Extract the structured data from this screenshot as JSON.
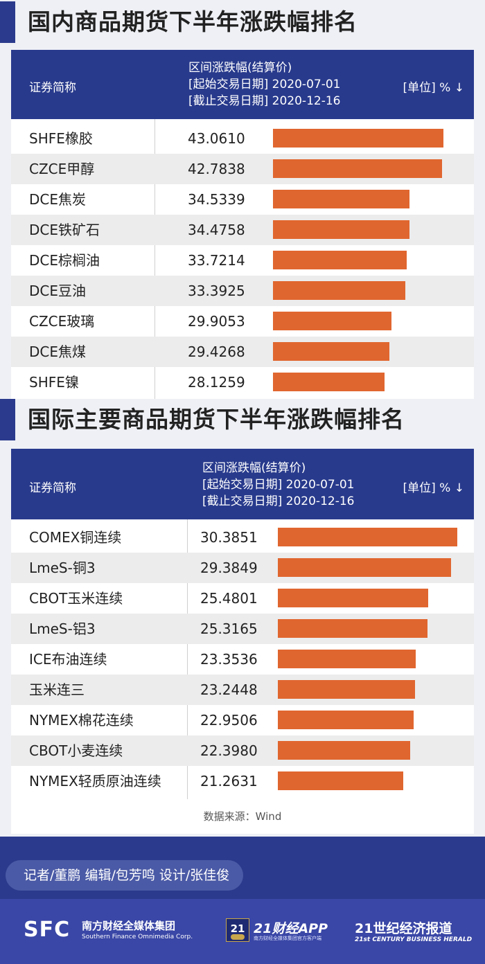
{
  "domestic": {
    "title": "国内商品期货下半年涨跌幅排名",
    "header": {
      "name_col": "证券简称",
      "range_line1": "区间涨跌幅(结算价)",
      "range_line2": "[起始交易日期] 2020-07-01",
      "range_line3": "[截止交易日期] 2020-12-16",
      "unit": "[单位] % ↓"
    }
  },
  "international": {
    "title": "国际主要商品期货下半年涨跌幅排名",
    "header": {
      "name_col": "证券简称",
      "range_line1": "区间涨跌幅(结算价)",
      "range_line2": "[起始交易日期] 2020-07-01",
      "range_line3": "[截止交易日期] 2020-12-16",
      "unit": "[单位] % ↓"
    }
  },
  "chart_data": [
    {
      "type": "bar",
      "title": "国内商品期货下半年涨跌幅排名",
      "ylabel": "区间涨跌幅(结算价) %",
      "categories": [
        "SHFE橡胶",
        "CZCE甲醇",
        "DCE焦炭",
        "DCE铁矿石",
        "DCE棕榈油",
        "DCE豆油",
        "CZCE玻璃",
        "DCE焦煤",
        "SHFE镍"
      ],
      "values": [
        43.061,
        42.7838,
        34.5339,
        34.4758,
        33.7214,
        33.3925,
        29.9053,
        29.4268,
        28.1259
      ],
      "labels": [
        "43.0610",
        "42.7838",
        "34.5339",
        "34.4758",
        "33.7214",
        "33.3925",
        "29.9053",
        "29.4268",
        "28.1259"
      ]
    },
    {
      "type": "bar",
      "title": "国际主要商品期货下半年涨跌幅排名",
      "ylabel": "区间涨跌幅(结算价) %",
      "categories": [
        "COMEX铜连续",
        "LmeS-铜3",
        "CBOT玉米连续",
        "LmeS-铝3",
        "ICE布油连续",
        "玉米连三",
        "NYMEX棉花连续",
        "CBOT小麦连续",
        "NYMEX轻质原油连续"
      ],
      "values": [
        30.3851,
        29.3849,
        25.4801,
        25.3165,
        23.3536,
        23.2448,
        22.9506,
        22.398,
        21.2631
      ],
      "labels": [
        "30.3851",
        "29.3849",
        "25.4801",
        "25.3165",
        "23.3536",
        "23.2448",
        "22.9506",
        "22.3980",
        "21.2631"
      ]
    }
  ],
  "source": "数据来源：Wind",
  "footer": {
    "credits": "记者/董鹏  编辑/包芳鸣  设计/张佳俊",
    "sfc_logo": "SFC",
    "sfc_cn": "南方财经全媒体集团",
    "sfc_en": "Southern Finance Omnimedia Corp.",
    "badge": "21",
    "app_title": "21财经APP",
    "app_sub": "南方财经全媒体集团官方客户端",
    "herald_cn": "21世纪经济报道",
    "herald_en": "21st CENTURY BUSINESS HERALD"
  },
  "colors": {
    "header": "#283a8c",
    "bar": "#e0662f",
    "accent": "#2b3a8c"
  }
}
